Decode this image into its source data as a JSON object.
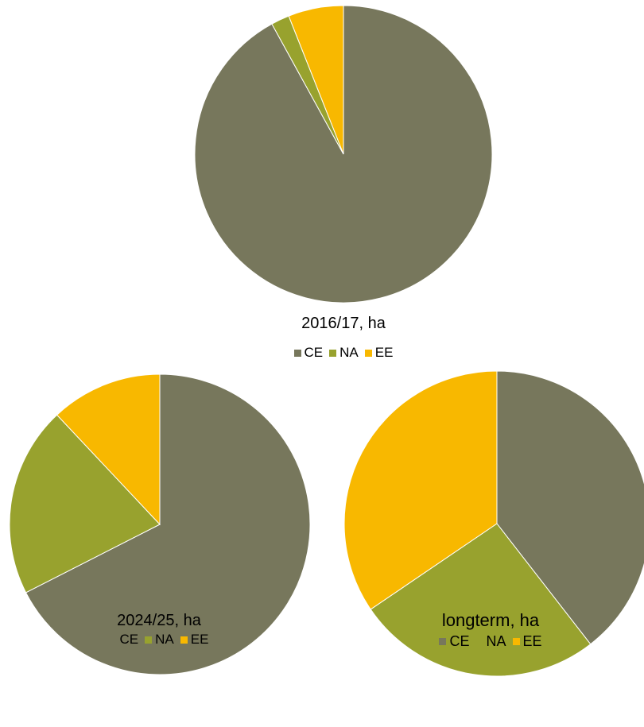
{
  "chart_data": [
    {
      "type": "pie",
      "title": "2016/17, ha",
      "categories": [
        "CE",
        "NA",
        "EE"
      ],
      "values": [
        92,
        2,
        6
      ],
      "colors": [
        "#77775c",
        "#98a22e",
        "#f8b800"
      ],
      "legend_position": "bottom"
    },
    {
      "type": "pie",
      "title": "2024/25, ha",
      "categories": [
        "CE",
        "NA",
        "EE"
      ],
      "values": [
        67.5,
        20.5,
        12
      ],
      "colors": [
        "#77775c",
        "#98a22e",
        "#f8b800"
      ],
      "legend_position": "bottom"
    },
    {
      "type": "pie",
      "title": "longterm, ha",
      "categories": [
        "CE",
        "NA",
        "EE"
      ],
      "values": [
        39.5,
        26,
        34.5
      ],
      "colors": [
        "#77775c",
        "#98a22e",
        "#f8b800"
      ],
      "legend_position": "bottom"
    }
  ]
}
